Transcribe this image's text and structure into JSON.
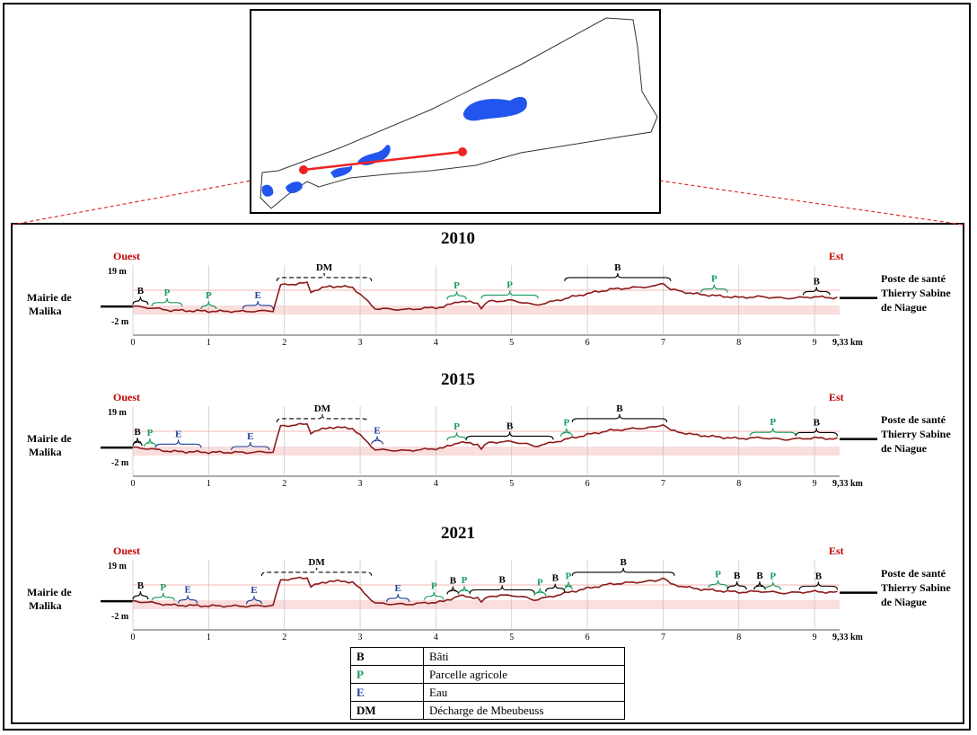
{
  "colors": {
    "profile": "#8b1a1a",
    "band": "#f4b4b4",
    "direction": "#c00000",
    "water_map": "#2255ee",
    "transect": "#ee2222",
    "B": "#000000",
    "P": "#179b5c",
    "E": "#1f3f99",
    "DM": "#000000"
  },
  "labels": {
    "west": "Ouest",
    "east": "Est",
    "start_place": [
      "Mairie de",
      "Malika"
    ],
    "end_place": [
      "Poste de santé",
      "Thierry Sabine",
      "de Niague"
    ],
    "y_top": "19 m",
    "y_bottom": "-2 m",
    "x_end": "9,33 km"
  },
  "chart_data": [
    {
      "type": "line",
      "title": "2010",
      "x_ticks": [
        "0",
        "1",
        "2",
        "3",
        "4",
        "5",
        "6",
        "7",
        "8",
        "9"
      ],
      "ylim": [
        -2,
        19
      ],
      "xlim": [
        0,
        9.33
      ],
      "x_unit": "km",
      "y_unit": "m",
      "zones": [
        {
          "code": "B",
          "x0": 0.0,
          "x1": 0.2
        },
        {
          "code": "P",
          "x0": 0.25,
          "x1": 0.65
        },
        {
          "code": "P",
          "x0": 0.9,
          "x1": 1.1
        },
        {
          "code": "E",
          "x0": 1.45,
          "x1": 1.85
        },
        {
          "code": "DM",
          "x0": 1.9,
          "x1": 3.15
        },
        {
          "code": "P",
          "x0": 4.15,
          "x1": 4.4
        },
        {
          "code": "P",
          "x0": 4.6,
          "x1": 5.35
        },
        {
          "code": "B",
          "x0": 5.7,
          "x1": 7.1
        },
        {
          "code": "P",
          "x0": 7.5,
          "x1": 7.85
        },
        {
          "code": "B",
          "x0": 8.85,
          "x1": 9.2
        }
      ]
    },
    {
      "type": "line",
      "title": "2015",
      "x_ticks": [
        "0",
        "1",
        "2",
        "3",
        "4",
        "5",
        "6",
        "7",
        "8",
        "9"
      ],
      "ylim": [
        -2,
        19
      ],
      "xlim": [
        0,
        9.33
      ],
      "x_unit": "km",
      "y_unit": "m",
      "zones": [
        {
          "code": "B",
          "x0": 0.0,
          "x1": 0.12
        },
        {
          "code": "P",
          "x0": 0.15,
          "x1": 0.3
        },
        {
          "code": "E",
          "x0": 0.3,
          "x1": 0.9
        },
        {
          "code": "E",
          "x0": 1.3,
          "x1": 1.8
        },
        {
          "code": "DM",
          "x0": 1.9,
          "x1": 3.1
        },
        {
          "code": "E",
          "x0": 3.15,
          "x1": 3.3
        },
        {
          "code": "P",
          "x0": 4.15,
          "x1": 4.4
        },
        {
          "code": "B",
          "x0": 4.4,
          "x1": 5.55
        },
        {
          "code": "P",
          "x0": 5.65,
          "x1": 5.8
        },
        {
          "code": "B",
          "x0": 5.8,
          "x1": 7.05
        },
        {
          "code": "P",
          "x0": 8.15,
          "x1": 8.75
        },
        {
          "code": "B",
          "x0": 8.75,
          "x1": 9.3
        }
      ]
    },
    {
      "type": "line",
      "title": "2021",
      "x_ticks": [
        "0",
        "1",
        "2",
        "3",
        "4",
        "5",
        "6",
        "7",
        "8",
        "9"
      ],
      "ylim": [
        -2,
        19
      ],
      "xlim": [
        0,
        9.33
      ],
      "x_unit": "km",
      "y_unit": "m",
      "zones": [
        {
          "code": "B",
          "x0": 0.0,
          "x1": 0.2
        },
        {
          "code": "P",
          "x0": 0.25,
          "x1": 0.55
        },
        {
          "code": "E",
          "x0": 0.6,
          "x1": 0.85
        },
        {
          "code": "E",
          "x0": 1.5,
          "x1": 1.7
        },
        {
          "code": "DM",
          "x0": 1.7,
          "x1": 3.15
        },
        {
          "code": "E",
          "x0": 3.35,
          "x1": 3.65
        },
        {
          "code": "P",
          "x0": 3.85,
          "x1": 4.1
        },
        {
          "code": "B",
          "x0": 4.15,
          "x1": 4.3
        },
        {
          "code": "P",
          "x0": 4.3,
          "x1": 4.45
        },
        {
          "code": "B",
          "x0": 4.45,
          "x1": 5.3
        },
        {
          "code": "P",
          "x0": 5.3,
          "x1": 5.45
        },
        {
          "code": "B",
          "x0": 5.45,
          "x1": 5.7
        },
        {
          "code": "P",
          "x0": 5.7,
          "x1": 5.8
        },
        {
          "code": "B",
          "x0": 5.8,
          "x1": 7.15
        },
        {
          "code": "P",
          "x0": 7.6,
          "x1": 7.85
        },
        {
          "code": "B",
          "x0": 7.85,
          "x1": 8.1
        },
        {
          "code": "B",
          "x0": 8.2,
          "x1": 8.35
        },
        {
          "code": "P",
          "x0": 8.35,
          "x1": 8.55
        },
        {
          "code": "B",
          "x0": 8.8,
          "x1": 9.3
        }
      ]
    }
  ],
  "legend": [
    {
      "code": "B",
      "label": "Bâti"
    },
    {
      "code": "P",
      "label": "Parcelle agricole"
    },
    {
      "code": "E",
      "label": "Eau"
    },
    {
      "code": "DM",
      "label": "Décharge de Mbeubeuss"
    }
  ]
}
